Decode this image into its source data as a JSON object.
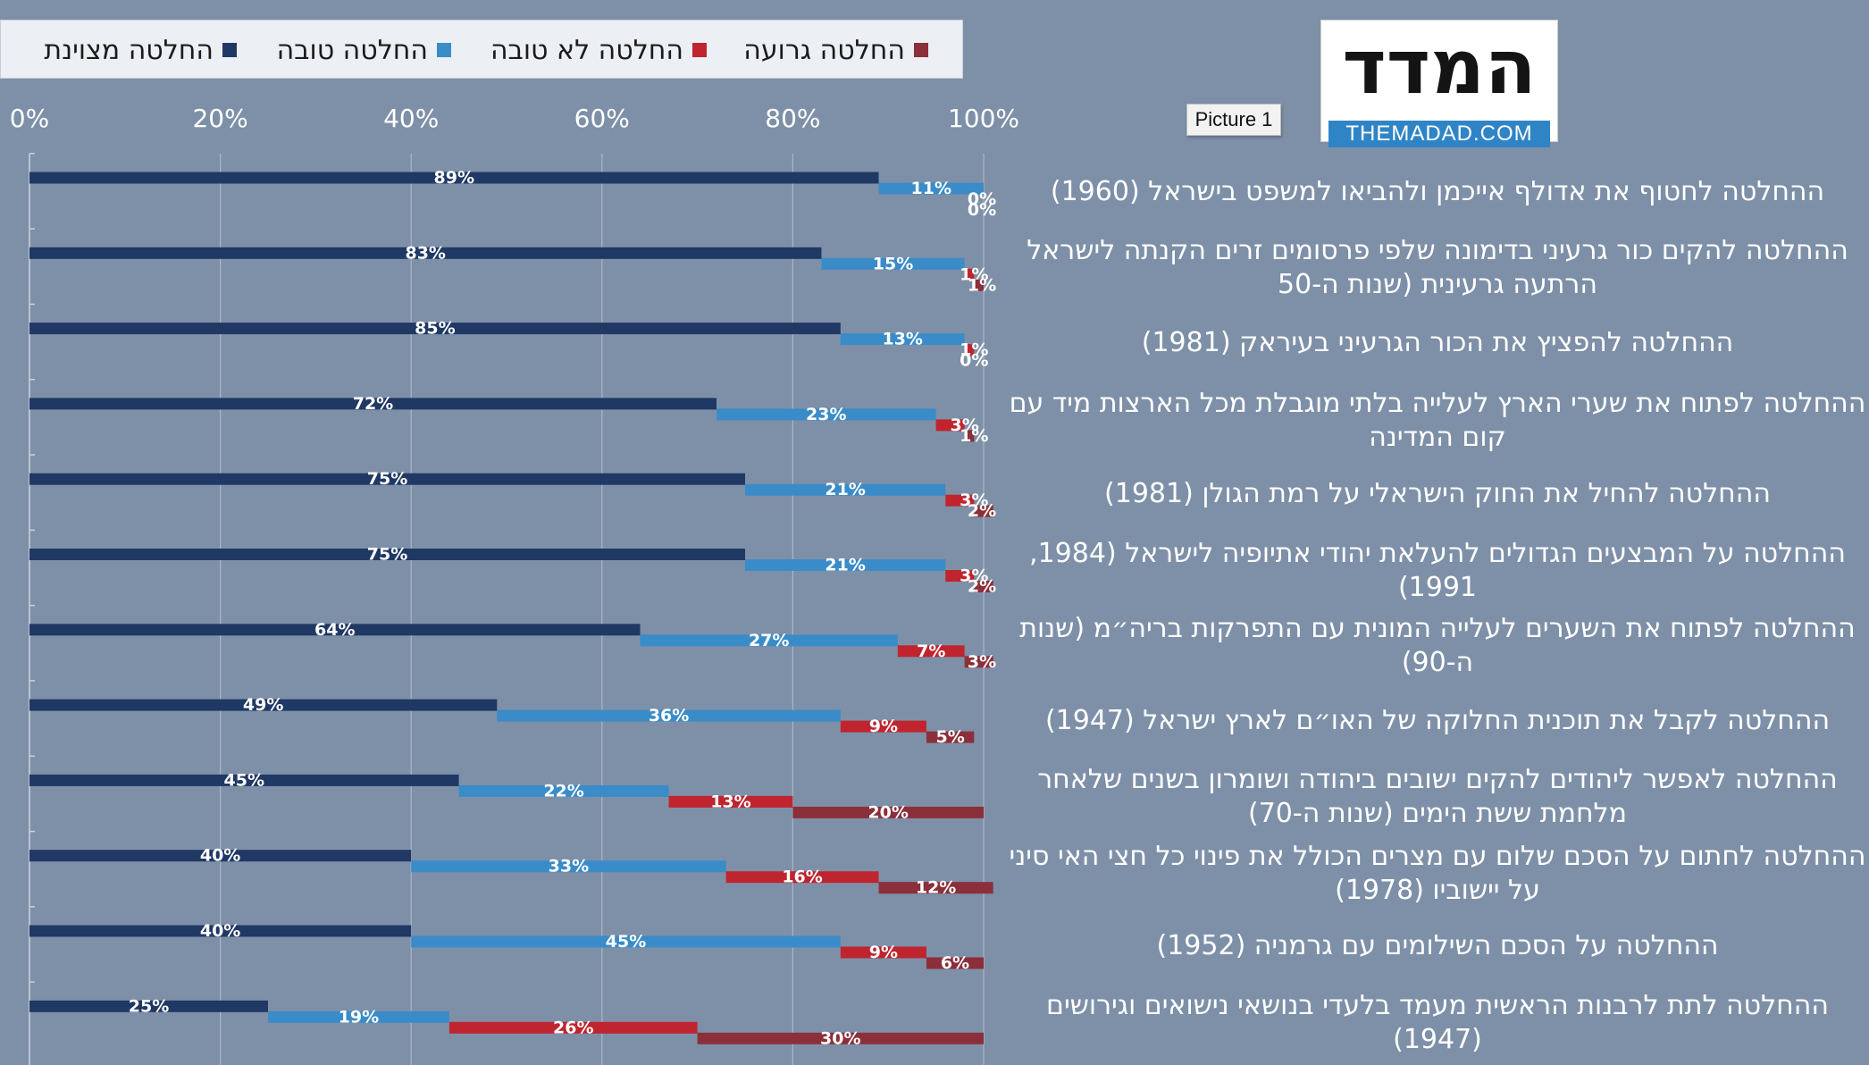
{
  "legend": {
    "items": [
      {
        "label": "החלטה מצוינת",
        "color": "#203864"
      },
      {
        "label": "החלטה טובה",
        "color": "#3a8cc8"
      },
      {
        "label": "החלטה לא טובה",
        "color": "#c0242e"
      },
      {
        "label": "החלטה גרועה",
        "color": "#8b2f3a"
      }
    ]
  },
  "logo": {
    "title": "המדד",
    "subtitle": "THEMADAD.COM",
    "picture_tag": "Picture 1"
  },
  "chart_data": {
    "type": "bar",
    "orientation": "horizontal",
    "stacked": true,
    "xlim": [
      0,
      100
    ],
    "x_ticks": [
      "0%",
      "20%",
      "40%",
      "60%",
      "80%",
      "100%"
    ],
    "grid": true,
    "legend_position": "top",
    "categories": [
      "ההחלטה לחטוף את אדולף אייכמן ולהביאו למשפט בישראל (1960)",
      "ההחלטה להקים כור גרעיני בדימונה שלפי פרסומים זרים הקנתה לישראל הרתעה גרעינית (שנות ה-50",
      "ההחלטה להפציץ את הכור הגרעיני בעיראק (1981)",
      "ההחלטה לפתוח את שערי הארץ לעלייה בלתי מוגבלת מכל הארצות מיד עם קום המדינה",
      "ההחלטה להחיל את החוק הישראלי על רמת הגולן (1981)",
      "ההחלטה על המבצעים הגדולים להעלאת יהודי אתיופיה לישראל (1984, 1991)",
      "ההחלטה לפתוח את השערים לעלייה המונית עם התפרקות בריה״מ (שנות ה-90)",
      "ההחלטה לקבל את תוכנית החלוקה של האו״ם לארץ ישראל (1947)",
      "ההחלטה לאפשר ליהודים להקים ישובים ביהודה ושומרון בשנים שלאחר מלחמת ששת הימים (שנות ה-70)",
      "ההחלטה לחתום על הסכם שלום עם מצרים הכולל את פינוי כל חצי האי סיני על יישוביו (1978)",
      "ההחלטה על הסכם השילומים עם גרמניה (1952)",
      "ההחלטה לתת לרבנות הראשית מעמד בלעדי בנושאי נישואים וגירושים (1947)"
    ],
    "series": [
      {
        "name": "החלטה מצוינת",
        "values": [
          89,
          83,
          85,
          72,
          75,
          75,
          64,
          49,
          45,
          40,
          40,
          25
        ]
      },
      {
        "name": "החלטה טובה",
        "values": [
          11,
          15,
          13,
          23,
          21,
          21,
          27,
          36,
          22,
          33,
          45,
          19
        ]
      },
      {
        "name": "החלטה לא טובה",
        "values": [
          0,
          1,
          1,
          3,
          3,
          3,
          7,
          9,
          13,
          16,
          9,
          26
        ]
      },
      {
        "name": "החלטה גרועה",
        "values": [
          0,
          1,
          0,
          1,
          2,
          2,
          3,
          5,
          20,
          12,
          6,
          30
        ]
      }
    ],
    "data_labels": [
      [
        "89%",
        "11%",
        "0%",
        "0%"
      ],
      [
        "83%",
        "15%",
        "1%",
        "1%"
      ],
      [
        "85%",
        "13%",
        "1%",
        "0%"
      ],
      [
        "72%",
        "23%",
        "3%",
        "1%"
      ],
      [
        "75%",
        "21%",
        "3%",
        "2%"
      ],
      [
        "75%",
        "21%",
        "3%",
        "2%"
      ],
      [
        "64%",
        "27%",
        "7%",
        "3%"
      ],
      [
        "49%",
        "36%",
        "9%",
        "5%"
      ],
      [
        "45%",
        "22%",
        "13%",
        "20%"
      ],
      [
        "40%",
        "33%",
        "16%",
        "12%"
      ],
      [
        "40%",
        "45%",
        "9%",
        "6%"
      ],
      [
        "25%",
        "19%",
        "26%",
        "30%"
      ]
    ]
  }
}
